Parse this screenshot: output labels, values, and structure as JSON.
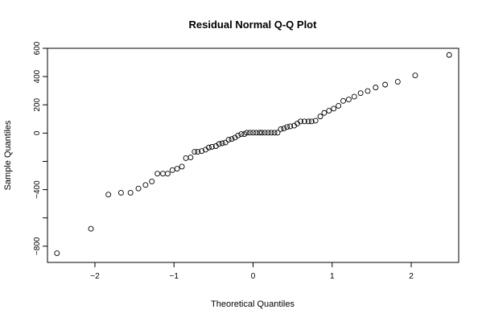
{
  "chart_data": {
    "type": "scatter",
    "title": "Residual Normal Q-Q Plot",
    "xlabel": "Theoretical Quantiles",
    "ylabel": "Sample Quantiles",
    "xlim": [
      -2.6,
      2.6
    ],
    "ylim": [
      -915,
      600
    ],
    "xticks": [
      -2,
      -1,
      0,
      1,
      2
    ],
    "xtick_labels": [
      "−2",
      "−1",
      "0",
      "1",
      "2"
    ],
    "yticks": [
      -800,
      -600,
      -400,
      -200,
      0,
      200,
      400,
      600
    ],
    "ytick_labels": [
      "−800",
      "",
      "−400",
      "",
      "0",
      "200",
      "400",
      "600"
    ],
    "grid": false,
    "legend": "none",
    "points": [
      {
        "x": -2.48,
        "y": -850
      },
      {
        "x": -2.05,
        "y": -677
      },
      {
        "x": -1.83,
        "y": -435
      },
      {
        "x": -1.67,
        "y": -422
      },
      {
        "x": -1.55,
        "y": -422
      },
      {
        "x": -1.45,
        "y": -392
      },
      {
        "x": -1.36,
        "y": -367
      },
      {
        "x": -1.28,
        "y": -342
      },
      {
        "x": -1.21,
        "y": -287
      },
      {
        "x": -1.14,
        "y": -287
      },
      {
        "x": -1.08,
        "y": -287
      },
      {
        "x": -1.02,
        "y": -262
      },
      {
        "x": -0.96,
        "y": -252
      },
      {
        "x": -0.9,
        "y": -237
      },
      {
        "x": -0.85,
        "y": -177
      },
      {
        "x": -0.79,
        "y": -172
      },
      {
        "x": -0.74,
        "y": -132
      },
      {
        "x": -0.7,
        "y": -132
      },
      {
        "x": -0.65,
        "y": -127
      },
      {
        "x": -0.6,
        "y": -117
      },
      {
        "x": -0.56,
        "y": -102
      },
      {
        "x": -0.52,
        "y": -97
      },
      {
        "x": -0.47,
        "y": -92
      },
      {
        "x": -0.43,
        "y": -77
      },
      {
        "x": -0.39,
        "y": -72
      },
      {
        "x": -0.35,
        "y": -67
      },
      {
        "x": -0.31,
        "y": -47
      },
      {
        "x": -0.27,
        "y": -42
      },
      {
        "x": -0.23,
        "y": -32
      },
      {
        "x": -0.19,
        "y": -17
      },
      {
        "x": -0.15,
        "y": -7
      },
      {
        "x": -0.11,
        "y": -7
      },
      {
        "x": -0.08,
        "y": 3
      },
      {
        "x": -0.04,
        "y": 3
      },
      {
        "x": 0.0,
        "y": 3
      },
      {
        "x": 0.04,
        "y": 3
      },
      {
        "x": 0.08,
        "y": 3
      },
      {
        "x": 0.11,
        "y": 3
      },
      {
        "x": 0.15,
        "y": 3
      },
      {
        "x": 0.19,
        "y": 3
      },
      {
        "x": 0.23,
        "y": 3
      },
      {
        "x": 0.27,
        "y": 3
      },
      {
        "x": 0.31,
        "y": 3
      },
      {
        "x": 0.35,
        "y": 28
      },
      {
        "x": 0.39,
        "y": 33
      },
      {
        "x": 0.43,
        "y": 43
      },
      {
        "x": 0.47,
        "y": 48
      },
      {
        "x": 0.52,
        "y": 53
      },
      {
        "x": 0.56,
        "y": 68
      },
      {
        "x": 0.6,
        "y": 83
      },
      {
        "x": 0.65,
        "y": 83
      },
      {
        "x": 0.7,
        "y": 83
      },
      {
        "x": 0.74,
        "y": 83
      },
      {
        "x": 0.79,
        "y": 88
      },
      {
        "x": 0.85,
        "y": 118
      },
      {
        "x": 0.9,
        "y": 143
      },
      {
        "x": 0.96,
        "y": 158
      },
      {
        "x": 1.02,
        "y": 173
      },
      {
        "x": 1.08,
        "y": 193
      },
      {
        "x": 1.14,
        "y": 228
      },
      {
        "x": 1.21,
        "y": 238
      },
      {
        "x": 1.28,
        "y": 258
      },
      {
        "x": 1.36,
        "y": 283
      },
      {
        "x": 1.45,
        "y": 298
      },
      {
        "x": 1.55,
        "y": 323
      },
      {
        "x": 1.67,
        "y": 343
      },
      {
        "x": 1.83,
        "y": 363
      },
      {
        "x": 2.05,
        "y": 408
      },
      {
        "x": 2.48,
        "y": 553
      }
    ]
  }
}
